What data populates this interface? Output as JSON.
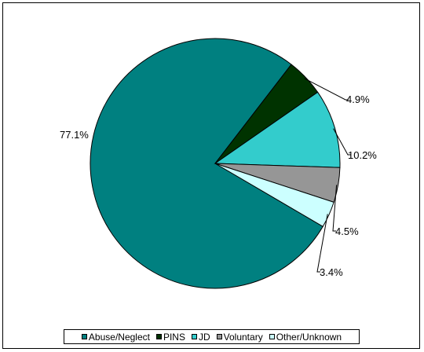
{
  "chart_data": {
    "type": "pie",
    "title": "",
    "slices": [
      {
        "name": "Abuse/Neglect",
        "value": 77.1,
        "label": "77.1%",
        "color": "#008080"
      },
      {
        "name": "PINS",
        "value": 4.9,
        "label": "4.9%",
        "color": "#003300"
      },
      {
        "name": "JD",
        "value": 10.2,
        "label": "10.2%",
        "color": "#33CCCC"
      },
      {
        "name": "Voluntary",
        "value": 4.5,
        "label": "4.5%",
        "color": "#969696"
      },
      {
        "name": "Other/Unknown",
        "value": 3.4,
        "label": "3.4%",
        "color": "#CCFFFF"
      }
    ],
    "legend_position": "bottom"
  }
}
